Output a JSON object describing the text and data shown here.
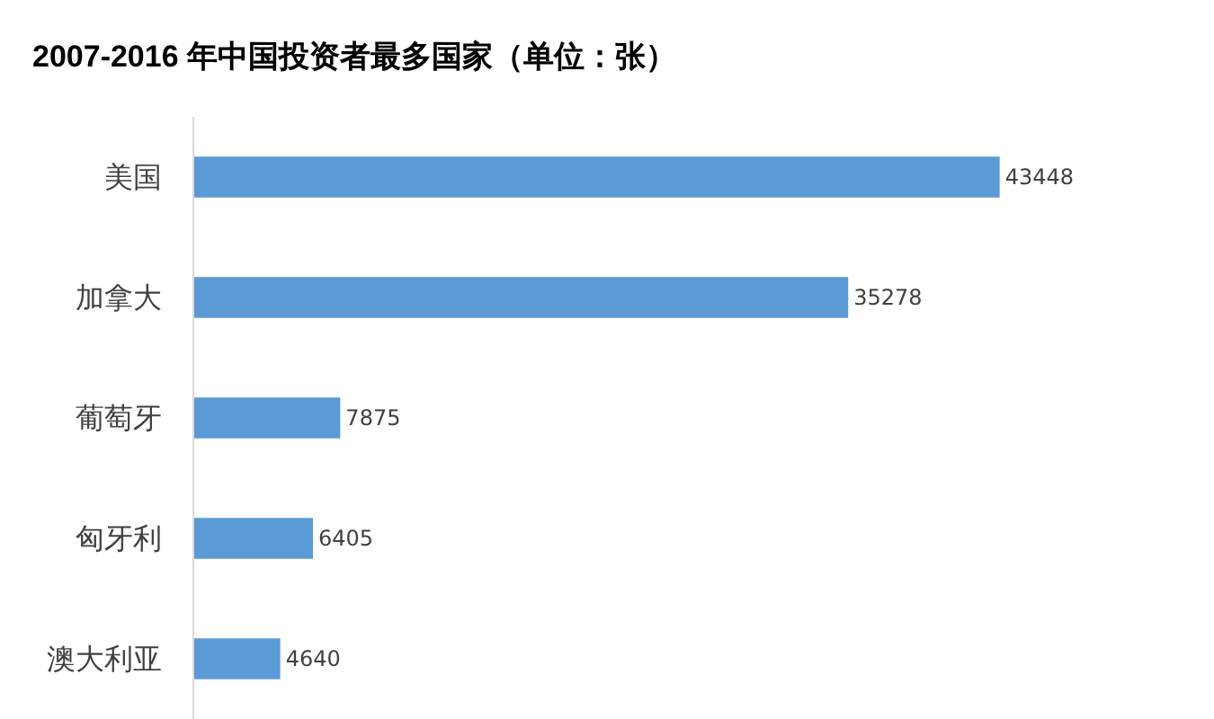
{
  "chart_data": {
    "type": "bar",
    "orientation": "horizontal",
    "title": "2007-2016 年中国投资者最多国家（单位：张）",
    "categories": [
      "美国",
      "加拿大",
      "葡萄牙",
      "匈牙利",
      "澳大利亚"
    ],
    "values": [
      43448,
      35278,
      7875,
      6405,
      4640
    ],
    "color": "#5b9bd5",
    "tick_labels": "y",
    "data_labels": true
  }
}
